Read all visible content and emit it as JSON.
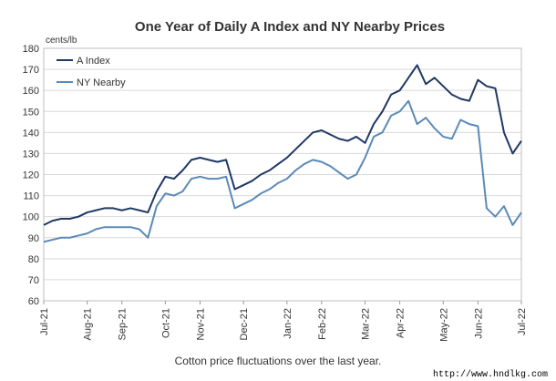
{
  "chart_data": {
    "type": "line",
    "title": "One Year of Daily A Index and NY Nearby Prices",
    "y_label": "cents/lb",
    "caption": "Cotton price fluctuations over the last year.",
    "watermark": "http://www.hndlkg.com",
    "categories": [
      "Jul-21",
      null,
      null,
      null,
      null,
      "Aug-21",
      null,
      null,
      null,
      "Sep-21",
      null,
      null,
      null,
      null,
      "Oct-21",
      null,
      null,
      null,
      "Nov-21",
      null,
      null,
      null,
      null,
      "Dec-21",
      null,
      null,
      null,
      null,
      "Jan-22",
      null,
      null,
      null,
      "Feb-22",
      null,
      null,
      null,
      null,
      "Mar-22",
      null,
      null,
      null,
      "Apr-22",
      null,
      null,
      null,
      null,
      "May-22",
      null,
      null,
      null,
      "Jun-22",
      null,
      null,
      null,
      null,
      "Jul-22"
    ],
    "series": [
      {
        "name": "A Index",
        "color": "#1f3864",
        "values": [
          96,
          98,
          99,
          99,
          100,
          102,
          103,
          104,
          104,
          103,
          104,
          103,
          102,
          112,
          119,
          118,
          122,
          127,
          128,
          127,
          126,
          127,
          113,
          115,
          117,
          120,
          122,
          125,
          128,
          132,
          136,
          140,
          141,
          139,
          137,
          136,
          138,
          135,
          144,
          150,
          158,
          160,
          166,
          172,
          163,
          166,
          162,
          158,
          156,
          155,
          165,
          162,
          161,
          140,
          130,
          136
        ]
      },
      {
        "name": "NY Nearby",
        "color": "#5b8ab8",
        "values": [
          88,
          89,
          90,
          90,
          91,
          92,
          94,
          95,
          95,
          95,
          95,
          94,
          90,
          105,
          111,
          110,
          112,
          118,
          119,
          118,
          118,
          119,
          104,
          106,
          108,
          111,
          113,
          116,
          118,
          122,
          125,
          127,
          126,
          124,
          121,
          118,
          120,
          128,
          138,
          140,
          148,
          150,
          155,
          144,
          147,
          142,
          138,
          137,
          146,
          144,
          143,
          104,
          100,
          105,
          96,
          102
        ]
      }
    ],
    "ylim": [
      60,
      180
    ],
    "yticks": [
      60,
      70,
      80,
      90,
      100,
      110,
      120,
      130,
      140,
      150,
      160,
      170,
      180
    ],
    "grid": true,
    "legend": "upper left"
  }
}
